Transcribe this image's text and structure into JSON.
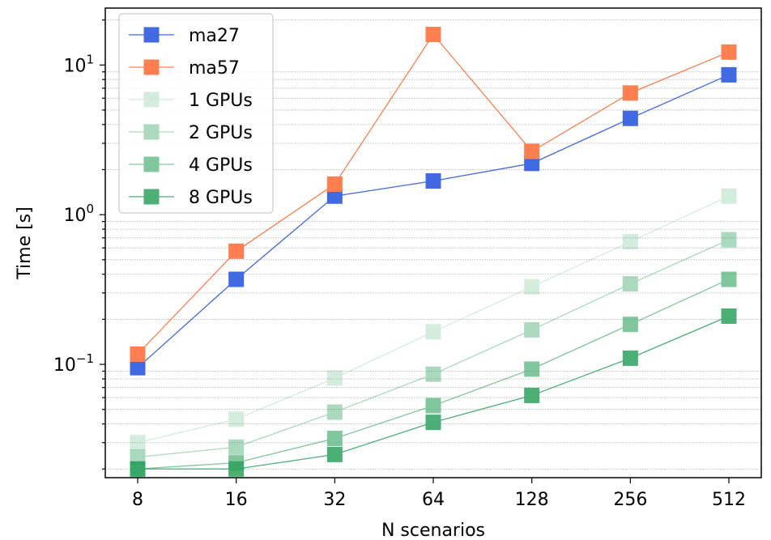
{
  "chart_data": {
    "type": "line",
    "xlabel": "N scenarios",
    "ylabel": "Time [s]",
    "x_scale": "log2",
    "y_scale": "log10",
    "ylim": [
      0.0175,
      24
    ],
    "categories": [
      "8",
      "16",
      "32",
      "64",
      "128",
      "256",
      "512"
    ],
    "x": [
      8,
      16,
      32,
      64,
      128,
      256,
      512
    ],
    "y_tick_labels": [
      {
        "value": 0.1,
        "base": "10",
        "exp": "−1"
      },
      {
        "value": 1,
        "base": "10",
        "exp": "0"
      },
      {
        "value": 10,
        "base": "10",
        "exp": "1"
      }
    ],
    "grid": "horizontal-minor-dotted",
    "legend_position": "top-left",
    "series": [
      {
        "name": "ma27",
        "color": "#4169e1",
        "opacity": 1.0,
        "values": [
          0.095,
          0.37,
          1.33,
          1.68,
          2.2,
          4.4,
          8.6
        ]
      },
      {
        "name": "ma57",
        "color": "#ff7f50",
        "opacity": 1.0,
        "values": [
          0.117,
          0.57,
          1.6,
          16.0,
          2.65,
          6.5,
          12.2
        ]
      },
      {
        "name": "1 GPUs",
        "color": "#2ca25f",
        "opacity": 0.2,
        "values": [
          0.03,
          0.043,
          0.081,
          0.165,
          0.33,
          0.66,
          1.33
        ]
      },
      {
        "name": "2 GPUs",
        "color": "#2ca25f",
        "opacity": 0.4,
        "values": [
          0.024,
          0.028,
          0.048,
          0.086,
          0.17,
          0.345,
          0.68
        ]
      },
      {
        "name": "4 GPUs",
        "color": "#2ca25f",
        "opacity": 0.6,
        "values": [
          0.02,
          0.022,
          0.032,
          0.053,
          0.093,
          0.185,
          0.37
        ]
      },
      {
        "name": "8 GPUs",
        "color": "#2ca25f",
        "opacity": 0.85,
        "values": [
          0.02,
          0.02,
          0.025,
          0.041,
          0.062,
          0.11,
          0.21
        ]
      }
    ]
  }
}
